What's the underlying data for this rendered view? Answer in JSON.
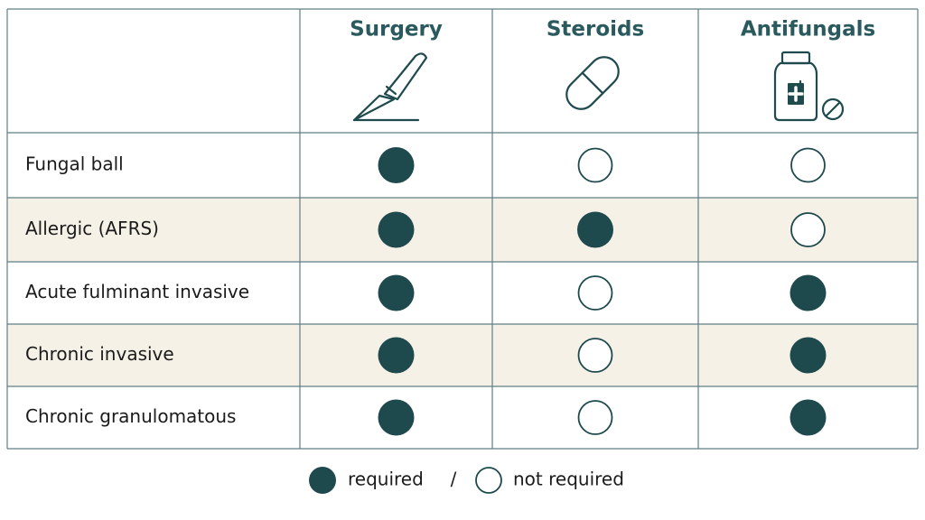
{
  "columns": [
    "Surgery",
    "Steroids",
    "Antifungals"
  ],
  "rows": [
    {
      "label": "Fungal ball",
      "required": [
        true,
        false,
        false
      ]
    },
    {
      "label": "Allergic (AFRS)",
      "required": [
        true,
        true,
        false
      ]
    },
    {
      "label": "Acute fulminant invasive",
      "required": [
        true,
        false,
        true
      ]
    },
    {
      "label": "Chronic invasive",
      "required": [
        true,
        false,
        true
      ]
    },
    {
      "label": "Chronic granulomatous",
      "required": [
        true,
        false,
        true
      ]
    }
  ],
  "legend": {
    "required": "required",
    "separator": "/",
    "not_required": "not required"
  }
}
